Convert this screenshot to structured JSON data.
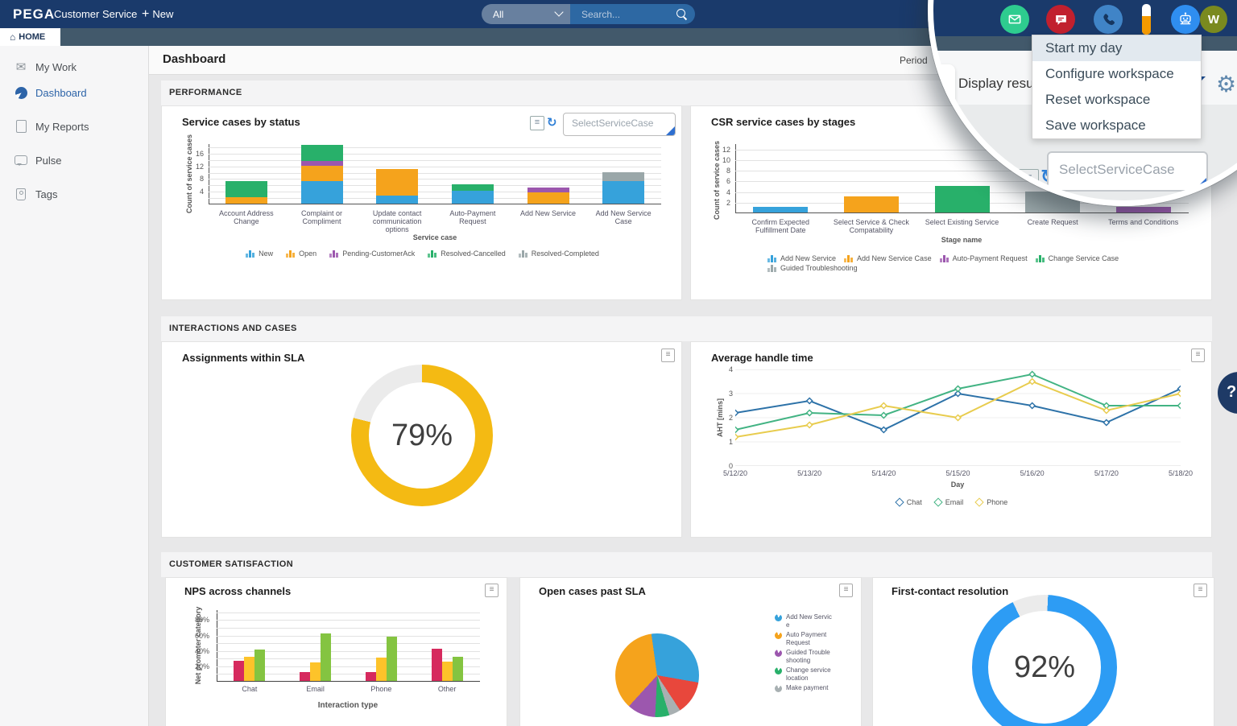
{
  "colors": {
    "navy": "#1a3a6b",
    "slate": "#42596b",
    "blue": "#36a2db",
    "orange": "#f5a31c",
    "purple": "#9c57ae",
    "green": "#28b06a",
    "gray": "#9aa7a9",
    "donut_yellow": "#f4ba13",
    "donut_blue": "#2d9cf4",
    "donut_track": "#ebebeb",
    "line_chat": "#2d72a8",
    "line_email": "#42b383",
    "line_phone": "#e8cc4e",
    "nps_red": "#d62a5e",
    "nps_amber": "#fdc32a",
    "nps_green": "#84c441",
    "pie_red": "#e8473c",
    "pie_gray": "#a8b0b2",
    "accent_blue": "#2e6fd0",
    "icon_mail_bg": "#2ecc8f",
    "icon_chat_bg": "#c1202e",
    "icon_phone_bg": "#4084c7",
    "icon_robot_bg": "#2f8ef0",
    "avatar_bg": "#7a8a1f"
  },
  "topbar": {
    "brand": "PEGA",
    "app_title": "Customer Service",
    "new_label": "New",
    "search_scope": "All",
    "search_placeholder": "Search..."
  },
  "home_tab": "HOME",
  "user_initial": "W",
  "sidebar": {
    "items": [
      {
        "label": "My Work",
        "active": false
      },
      {
        "label": "Dashboard",
        "active": true
      },
      {
        "label": "My Reports",
        "active": false
      },
      {
        "label": "Pulse",
        "active": false
      },
      {
        "label": "Tags",
        "active": false
      }
    ]
  },
  "header": {
    "title": "Dashboard",
    "period_label": "Period"
  },
  "sections": {
    "performance": "PERFORMANCE",
    "interactions": "INTERACTIONS AND CASES",
    "satisfaction": "CUSTOMER SATISFACTION"
  },
  "combobox_placeholder": "SelectServiceCase",
  "help_label": "?",
  "magnifier": {
    "menu_items": [
      "Start my day",
      "Configure workspace",
      "Reset workspace",
      "Save workspace"
    ],
    "highlighted_item": "Start my day",
    "partial_header_text": "Display resu",
    "combobox_placeholder": "SelectServiceCase",
    "gear_icon": "⚙"
  },
  "chart_data": [
    {
      "id": "service_cases_by_status",
      "type": "stacked-bar",
      "title": "Service cases by status",
      "xlabel": "Service case",
      "ylabel": "Count of service cases",
      "yticks": [
        4,
        8,
        12,
        16
      ],
      "ymax": 19,
      "grid_step": 2,
      "categories": [
        "Account Address Change",
        "Complaint or Compliment",
        "Update contact communication options",
        "Auto-Payment Request",
        "Add New Service",
        "Add New Service Case"
      ],
      "series": [
        {
          "name": "New",
          "color_key": "blue",
          "values": [
            0,
            7,
            2.5,
            4,
            0,
            7
          ]
        },
        {
          "name": "Open",
          "color_key": "orange",
          "values": [
            2,
            5,
            8.5,
            0,
            3.5,
            0
          ]
        },
        {
          "name": "Pending-CustomerAck",
          "color_key": "purple",
          "values": [
            0,
            1.5,
            0,
            0,
            1.5,
            0
          ]
        },
        {
          "name": "Resolved-Cancelled",
          "color_key": "green",
          "values": [
            5,
            5,
            0,
            2,
            0,
            0
          ]
        },
        {
          "name": "Resolved-Completed",
          "color_key": "gray",
          "values": [
            0,
            0,
            0,
            0,
            0,
            3
          ]
        }
      ]
    },
    {
      "id": "csr_service_cases_by_stages",
      "type": "bar",
      "title": "CSR service cases by stages",
      "xlabel": "Stage name",
      "ylabel": "Count of service cases",
      "yticks": [
        2,
        4,
        6,
        8,
        10,
        12
      ],
      "ymax": 13,
      "grid_step": 2,
      "categories": [
        "Confirm Expected Fulfillment Date",
        "Select Service & Check Compatability",
        "Select Existing Service",
        "Create Request",
        "Terms and Conditions"
      ],
      "values": [
        1,
        3,
        5,
        4,
        1
      ],
      "bar_color_keys": [
        "blue",
        "orange",
        "green",
        "gray",
        "purple"
      ],
      "legend": [
        {
          "name": "Add New Service",
          "color_key": "blue"
        },
        {
          "name": "Add New Service Case",
          "color_key": "orange"
        },
        {
          "name": "Auto-Payment Request",
          "color_key": "purple"
        },
        {
          "name": "Change Service Case",
          "color_key": "green"
        },
        {
          "name": "Guided Troubleshooting",
          "color_key": "gray"
        }
      ]
    },
    {
      "id": "assignments_within_sla",
      "type": "donut",
      "title": "Assignments within SLA",
      "value_pct": 79,
      "value_label": "79%",
      "color_key": "donut_yellow"
    },
    {
      "id": "average_handle_time",
      "type": "line",
      "title": "Average handle time",
      "xlabel": "Day",
      "ylabel": "AHT [mins]",
      "ylim": [
        0,
        4
      ],
      "yticks": [
        0,
        1,
        2,
        3,
        4
      ],
      "x": [
        "5/12/20",
        "5/13/20",
        "5/14/20",
        "5/15/20",
        "5/16/20",
        "5/17/20",
        "5/18/20"
      ],
      "series": [
        {
          "name": "Chat",
          "color_key": "line_chat",
          "values": [
            2.2,
            2.7,
            1.5,
            3.0,
            2.5,
            1.8,
            3.2
          ]
        },
        {
          "name": "Email",
          "color_key": "line_email",
          "values": [
            1.5,
            2.2,
            2.1,
            3.2,
            3.8,
            2.5,
            2.5
          ]
        },
        {
          "name": "Phone",
          "color_key": "line_phone",
          "values": [
            1.2,
            1.7,
            2.5,
            2.0,
            3.5,
            2.3,
            3.0
          ]
        }
      ]
    },
    {
      "id": "nps_across_channels",
      "type": "grouped-bar",
      "title": "NPS across channels",
      "xlabel": "Interaction type",
      "ylabel": "Net promoter category",
      "yticks_pct": [
        20,
        40,
        60,
        80
      ],
      "ymax": 93,
      "grid_step": 10,
      "categories": [
        "Chat",
        "Email",
        "Phone",
        "Other"
      ],
      "series": [
        {
          "name": "red",
          "color_key": "nps_red",
          "values": [
            26,
            12,
            11,
            42
          ]
        },
        {
          "name": "amber",
          "color_key": "nps_amber",
          "values": [
            31,
            24,
            30,
            25
          ]
        },
        {
          "name": "green",
          "color_key": "nps_green",
          "values": [
            41,
            62,
            57,
            31
          ]
        }
      ]
    },
    {
      "id": "open_cases_past_sla",
      "type": "pie",
      "title": "Open cases past SLA",
      "start_angle_deg": -8,
      "slices": [
        {
          "name": "Add New Service",
          "color_key": "blue",
          "pct": 30
        },
        {
          "name": "",
          "color_key": "pie_red",
          "pct": 13
        },
        {
          "name": "Make payment",
          "color_key": "pie_gray",
          "pct": 4.5
        },
        {
          "name": "Change service location",
          "color_key": "green",
          "pct": 5.5
        },
        {
          "name": "Guided Troubleshooting",
          "color_key": "purple",
          "pct": 11
        },
        {
          "name": "Auto Payment Request",
          "color_key": "orange",
          "pct": 36
        }
      ],
      "legend": [
        {
          "name": "Add New Service",
          "color_key": "blue"
        },
        {
          "name": "Auto Payment Request",
          "color_key": "orange"
        },
        {
          "name": "Guided Troubleshooting",
          "color_key": "purple"
        },
        {
          "name": "Change service location",
          "color_key": "green"
        },
        {
          "name": "Make payment",
          "color_key": "pie_gray"
        }
      ]
    },
    {
      "id": "first_contact_resolution",
      "type": "donut",
      "title": "First-contact resolution",
      "value_pct": 92,
      "value_label": "92%",
      "color_key": "donut_blue",
      "gap_from_deg": 334
    }
  ]
}
